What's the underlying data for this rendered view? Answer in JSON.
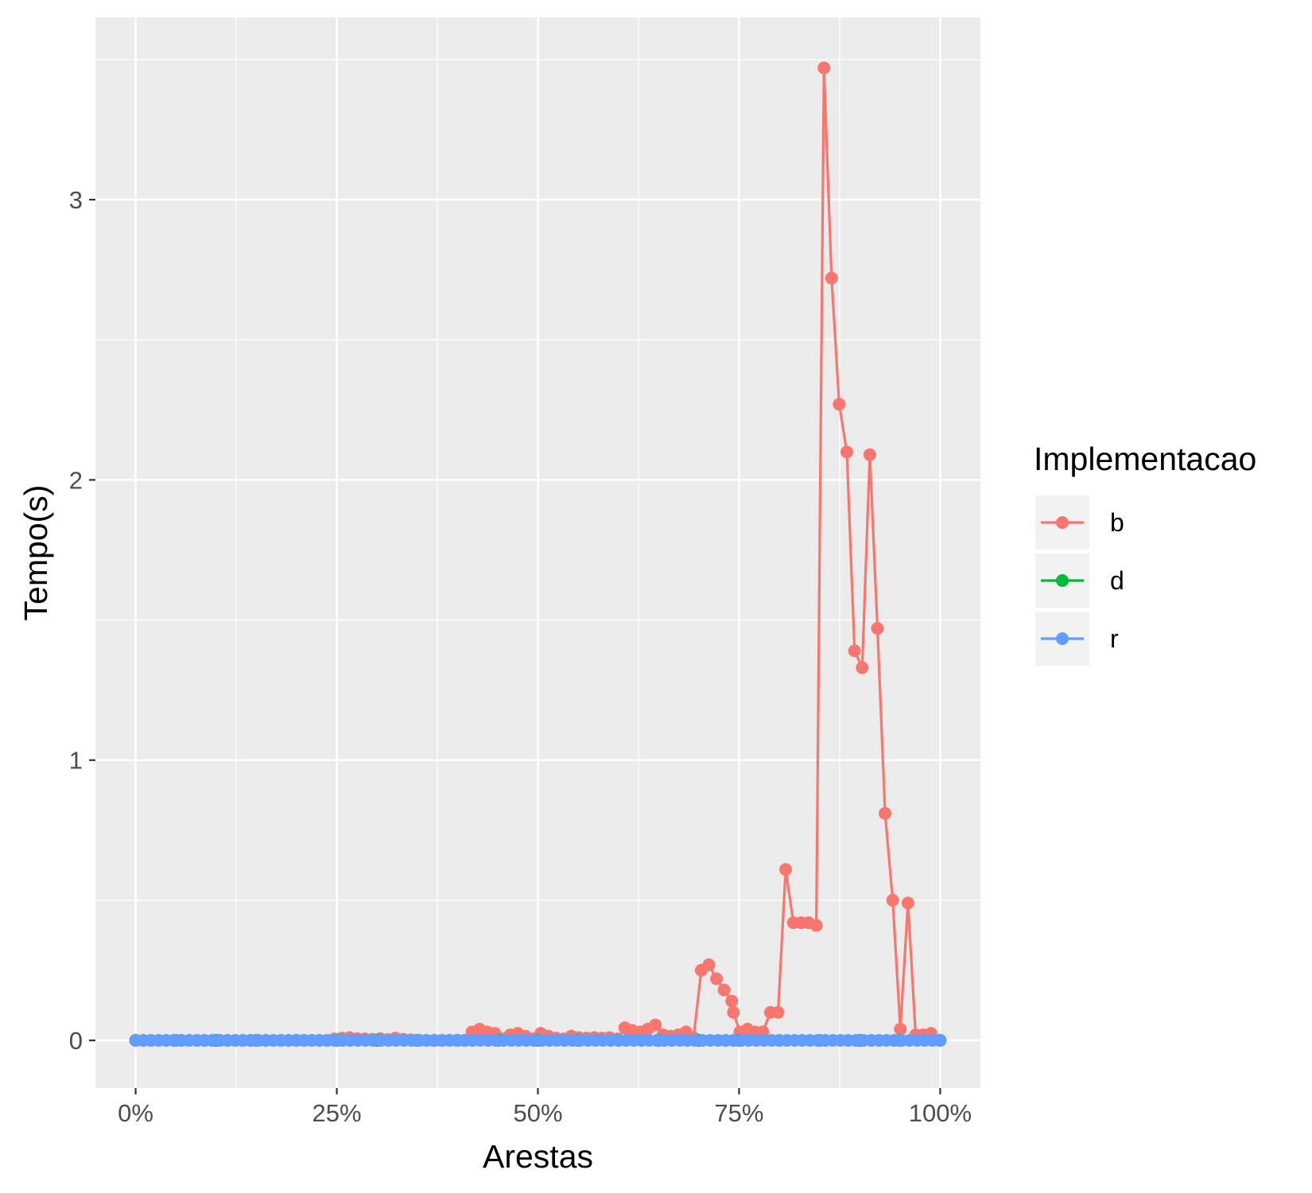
{
  "chart_data": {
    "type": "line",
    "xlabel": "Arestas",
    "ylabel": "Tempo(s)",
    "x_is_percent": true,
    "xlim": [
      -0.05,
      1.05
    ],
    "ylim": [
      -0.17,
      3.65
    ],
    "xticks": [
      0,
      0.25,
      0.5,
      0.75,
      1
    ],
    "xtick_labels": [
      "0%",
      "25%",
      "50%",
      "75%",
      "100%"
    ],
    "yticks": [
      0,
      1,
      2,
      3
    ],
    "ytick_labels": [
      "0",
      "1",
      "2",
      "3"
    ],
    "grid": true,
    "legend": {
      "title": "Implementacao",
      "position": "right"
    },
    "series": [
      {
        "name": "b",
        "color": "#F8766D",
        "points": [
          [
            0,
            0
          ],
          [
            0.0095,
            0
          ],
          [
            0.019,
            0
          ],
          [
            0.0285,
            0
          ],
          [
            0.038,
            0
          ],
          [
            0.0475,
            0
          ],
          [
            0.057,
            0
          ],
          [
            0.0665,
            0
          ],
          [
            0.076,
            0
          ],
          [
            0.0855,
            0
          ],
          [
            0.095,
            0
          ],
          [
            0.1045,
            0
          ],
          [
            0.114,
            0
          ],
          [
            0.1235,
            0
          ],
          [
            0.133,
            0
          ],
          [
            0.1425,
            0
          ],
          [
            0.152,
            0
          ],
          [
            0.1615,
            0
          ],
          [
            0.171,
            0
          ],
          [
            0.1805,
            0
          ],
          [
            0.19,
            0
          ],
          [
            0.1995,
            0
          ],
          [
            0.209,
            0
          ],
          [
            0.2185,
            0
          ],
          [
            0.228,
            0
          ],
          [
            0.2375,
            0
          ],
          [
            0.247,
            0.005
          ],
          [
            0.2565,
            0.008
          ],
          [
            0.266,
            0.01
          ],
          [
            0.2755,
            0.006
          ],
          [
            0.285,
            0.005
          ],
          [
            0.2945,
            0.004
          ],
          [
            0.304,
            0.006
          ],
          [
            0.3135,
            0.003
          ],
          [
            0.323,
            0.008
          ],
          [
            0.3325,
            0.004
          ],
          [
            0.342,
            0.002
          ],
          [
            0.3515,
            0.001
          ],
          [
            0.361,
            0
          ],
          [
            0.3705,
            0
          ],
          [
            0.38,
            0
          ],
          [
            0.3895,
            0
          ],
          [
            0.399,
            0
          ],
          [
            0.4085,
            0
          ],
          [
            0.418,
            0.03
          ],
          [
            0.4275,
            0.04
          ],
          [
            0.437,
            0.03
          ],
          [
            0.4465,
            0.025
          ],
          [
            0.456,
            0.005
          ],
          [
            0.4655,
            0.02
          ],
          [
            0.475,
            0.025
          ],
          [
            0.4845,
            0.015
          ],
          [
            0.494,
            0.005
          ],
          [
            0.5035,
            0.025
          ],
          [
            0.513,
            0.015
          ],
          [
            0.5225,
            0.008
          ],
          [
            0.532,
            0.005
          ],
          [
            0.5415,
            0.015
          ],
          [
            0.551,
            0.01
          ],
          [
            0.5605,
            0.008
          ],
          [
            0.57,
            0.01
          ],
          [
            0.5795,
            0.008
          ],
          [
            0.589,
            0.01
          ],
          [
            0.5985,
            0.005
          ],
          [
            0.608,
            0.045
          ],
          [
            0.6175,
            0.035
          ],
          [
            0.627,
            0.03
          ],
          [
            0.6365,
            0.04
          ],
          [
            0.646,
            0.055
          ],
          [
            0.6555,
            0.02
          ],
          [
            0.665,
            0.015
          ],
          [
            0.6745,
            0.02
          ],
          [
            0.684,
            0.03
          ],
          [
            0.6935,
            0.01
          ],
          [
            0.703,
            0.25
          ],
          [
            0.7125,
            0.27
          ],
          [
            0.722,
            0.22
          ],
          [
            0.7315,
            0.18
          ],
          [
            0.741,
            0.14
          ],
          [
            0.743,
            0.1
          ],
          [
            0.751,
            0.03
          ],
          [
            0.7605,
            0.04
          ],
          [
            0.77,
            0.03
          ],
          [
            0.7795,
            0.03
          ],
          [
            0.789,
            0.1
          ],
          [
            0.7985,
            0.1
          ],
          [
            0.808,
            0.61
          ],
          [
            0.8175,
            0.42
          ],
          [
            0.827,
            0.42
          ],
          [
            0.8365,
            0.42
          ],
          [
            0.846,
            0.41
          ],
          [
            0.8555,
            3.47
          ],
          [
            0.865,
            2.72
          ],
          [
            0.8745,
            2.27
          ],
          [
            0.884,
            2.1
          ],
          [
            0.8935,
            1.39
          ],
          [
            0.903,
            1.33
          ],
          [
            0.9125,
            2.09
          ],
          [
            0.922,
            1.47
          ],
          [
            0.9315,
            0.81
          ],
          [
            0.941,
            0.5
          ],
          [
            0.9505,
            0.04
          ],
          [
            0.96,
            0.49
          ],
          [
            0.9695,
            0.02
          ],
          [
            0.979,
            0.02
          ],
          [
            0.9885,
            0.025
          ],
          [
            1.0,
            0
          ]
        ]
      },
      {
        "name": "d",
        "color": "#00BA38",
        "points": [
          [
            0,
            0
          ],
          [
            0.05,
            0
          ],
          [
            0.1,
            0
          ],
          [
            0.15,
            0
          ],
          [
            0.2,
            0
          ],
          [
            0.25,
            0
          ],
          [
            0.3,
            0
          ],
          [
            0.35,
            0
          ],
          [
            0.4,
            0
          ],
          [
            0.45,
            0
          ],
          [
            0.5,
            0
          ],
          [
            0.55,
            0
          ],
          [
            0.6,
            0
          ],
          [
            0.65,
            0
          ],
          [
            0.7,
            0
          ],
          [
            0.75,
            0
          ],
          [
            0.8,
            0
          ],
          [
            0.85,
            0
          ],
          [
            0.9,
            0
          ],
          [
            0.95,
            0
          ],
          [
            1.0,
            0
          ]
        ]
      },
      {
        "name": "r",
        "color": "#619CFF",
        "points_uniform": {
          "from": 0,
          "to": 1,
          "count": 106,
          "value": 0
        }
      }
    ]
  }
}
